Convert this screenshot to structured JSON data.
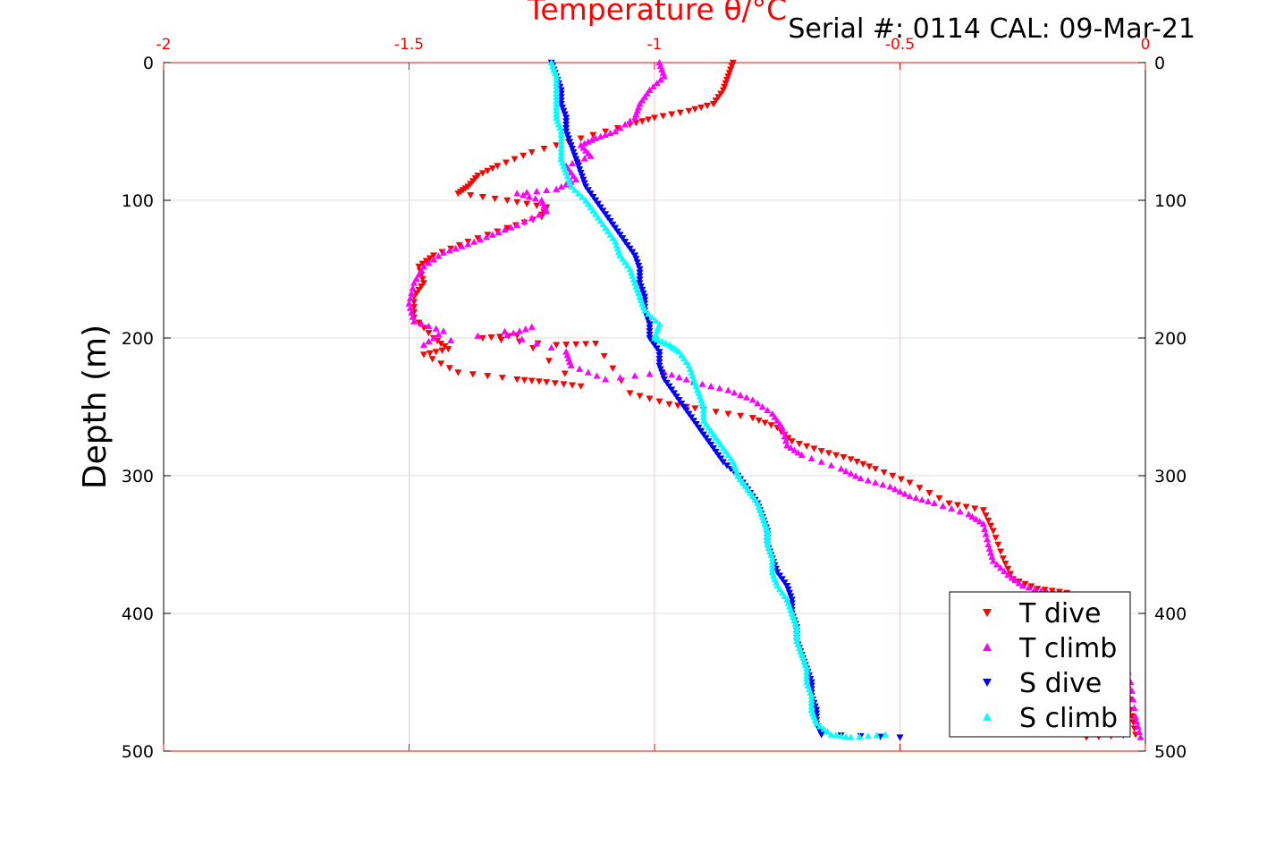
{
  "chart_data": {
    "type": "scatter",
    "title": "Temperature θ/°C",
    "annotation": "Serial #: 0114  CAL: 09-Mar-21",
    "xlabel": "Temperature θ/°C",
    "ylabel": "Depth (m)",
    "xlim": [
      -2,
      0
    ],
    "ylim": [
      500,
      0
    ],
    "y_reversed": true,
    "x_ticks": [
      "-2",
      "-1.5",
      "-1",
      "-0.5",
      "0"
    ],
    "y_ticks": [
      "0",
      "100",
      "200",
      "300",
      "400",
      "500"
    ],
    "grid": true,
    "legend_position": "bottom-right",
    "series": [
      {
        "name": "T dive",
        "color": "#ff0000",
        "marker": "triangle-down",
        "points": [
          [
            -0.84,
            0
          ],
          [
            -0.85,
            10
          ],
          [
            -0.86,
            20
          ],
          [
            -0.88,
            30
          ],
          [
            -0.93,
            35
          ],
          [
            -1.0,
            40
          ],
          [
            -1.05,
            45
          ],
          [
            -1.15,
            55
          ],
          [
            -1.25,
            65
          ],
          [
            -1.32,
            75
          ],
          [
            -1.36,
            82
          ],
          [
            -1.38,
            90
          ],
          [
            -1.4,
            95
          ],
          [
            -1.3,
            100
          ],
          [
            -1.22,
            105
          ],
          [
            -1.23,
            112
          ],
          [
            -1.3,
            120
          ],
          [
            -1.38,
            130
          ],
          [
            -1.45,
            140
          ],
          [
            -1.48,
            148
          ],
          [
            -1.47,
            160
          ],
          [
            -1.49,
            170
          ],
          [
            -1.49,
            185
          ],
          [
            -1.45,
            200
          ],
          [
            -1.42,
            208
          ],
          [
            -1.47,
            212
          ],
          [
            -1.4,
            225
          ],
          [
            -1.28,
            230
          ],
          [
            -1.22,
            232
          ],
          [
            -1.15,
            235
          ],
          [
            -1.28,
            198
          ],
          [
            -1.35,
            200
          ],
          [
            -1.2,
            205
          ],
          [
            -1.12,
            204
          ],
          [
            -1.05,
            240
          ],
          [
            -0.97,
            248
          ],
          [
            -0.9,
            252
          ],
          [
            -0.8,
            258
          ],
          [
            -0.75,
            265
          ],
          [
            -0.72,
            275
          ],
          [
            -0.66,
            282
          ],
          [
            -0.6,
            288
          ],
          [
            -0.55,
            295
          ],
          [
            -0.48,
            305
          ],
          [
            -0.4,
            320
          ],
          [
            -0.33,
            325
          ],
          [
            -0.31,
            340
          ],
          [
            -0.29,
            360
          ],
          [
            -0.27,
            375
          ],
          [
            -0.22,
            382
          ],
          [
            -0.16,
            385
          ],
          [
            -0.1,
            395
          ],
          [
            -0.06,
            410
          ],
          [
            -0.04,
            440
          ],
          [
            -0.03,
            470
          ],
          [
            -0.02,
            488
          ],
          [
            -0.12,
            490
          ]
        ]
      },
      {
        "name": "T climb",
        "color": "#ff00ff",
        "marker": "triangle-up",
        "points": [
          [
            -0.99,
            0
          ],
          [
            -0.98,
            10
          ],
          [
            -1.01,
            20
          ],
          [
            -1.03,
            30
          ],
          [
            -1.04,
            40
          ],
          [
            -1.08,
            50
          ],
          [
            -1.12,
            55
          ],
          [
            -1.15,
            60
          ],
          [
            -1.13,
            68
          ],
          [
            -1.18,
            75
          ],
          [
            -1.16,
            85
          ],
          [
            -1.2,
            92
          ],
          [
            -1.28,
            95
          ],
          [
            -1.23,
            100
          ],
          [
            -1.22,
            108
          ],
          [
            -1.28,
            118
          ],
          [
            -1.33,
            125
          ],
          [
            -1.38,
            132
          ],
          [
            -1.43,
            138
          ],
          [
            -1.47,
            148
          ],
          [
            -1.49,
            160
          ],
          [
            -1.5,
            175
          ],
          [
            -1.49,
            188
          ],
          [
            -1.43,
            195
          ],
          [
            -1.47,
            205
          ],
          [
            -1.25,
            192
          ],
          [
            -1.3,
            198
          ],
          [
            -1.18,
            210
          ],
          [
            -1.17,
            220
          ],
          [
            -1.1,
            230
          ],
          [
            -0.98,
            225
          ],
          [
            -0.92,
            232
          ],
          [
            -0.85,
            238
          ],
          [
            -0.8,
            245
          ],
          [
            -0.76,
            255
          ],
          [
            -0.74,
            265
          ],
          [
            -0.73,
            278
          ],
          [
            -0.7,
            285
          ],
          [
            -0.62,
            295
          ],
          [
            -0.58,
            302
          ],
          [
            -0.52,
            308
          ],
          [
            -0.48,
            315
          ],
          [
            -0.43,
            320
          ],
          [
            -0.36,
            328
          ],
          [
            -0.33,
            335
          ],
          [
            -0.32,
            350
          ],
          [
            -0.31,
            362
          ],
          [
            -0.28,
            372
          ],
          [
            -0.25,
            380
          ],
          [
            -0.2,
            385
          ],
          [
            -0.14,
            388
          ],
          [
            -0.08,
            400
          ],
          [
            -0.05,
            420
          ],
          [
            -0.03,
            450
          ],
          [
            -0.02,
            475
          ],
          [
            -0.01,
            490
          ]
        ]
      },
      {
        "name": "S dive",
        "color": "#0000ff",
        "marker": "triangle-down",
        "points": [
          [
            -1.21,
            0
          ],
          [
            -1.2,
            10
          ],
          [
            -1.19,
            20
          ],
          [
            -1.19,
            30
          ],
          [
            -1.18,
            40
          ],
          [
            -1.18,
            50
          ],
          [
            -1.17,
            60
          ],
          [
            -1.16,
            70
          ],
          [
            -1.15,
            80
          ],
          [
            -1.14,
            90
          ],
          [
            -1.12,
            100
          ],
          [
            -1.1,
            110
          ],
          [
            -1.08,
            120
          ],
          [
            -1.06,
            130
          ],
          [
            -1.04,
            140
          ],
          [
            -1.03,
            150
          ],
          [
            -1.03,
            160
          ],
          [
            -1.02,
            170
          ],
          [
            -1.02,
            180
          ],
          [
            -1.01,
            190
          ],
          [
            -1.01,
            200
          ],
          [
            -0.99,
            210
          ],
          [
            -0.99,
            220
          ],
          [
            -0.98,
            230
          ],
          [
            -0.96,
            240
          ],
          [
            -0.94,
            250
          ],
          [
            -0.92,
            260
          ],
          [
            -0.9,
            270
          ],
          [
            -0.88,
            280
          ],
          [
            -0.86,
            290
          ],
          [
            -0.83,
            300
          ],
          [
            -0.81,
            310
          ],
          [
            -0.79,
            320
          ],
          [
            -0.78,
            330
          ],
          [
            -0.77,
            340
          ],
          [
            -0.77,
            350
          ],
          [
            -0.76,
            360
          ],
          [
            -0.75,
            370
          ],
          [
            -0.73,
            380
          ],
          [
            -0.72,
            390
          ],
          [
            -0.72,
            400
          ],
          [
            -0.71,
            410
          ],
          [
            -0.71,
            420
          ],
          [
            -0.7,
            430
          ],
          [
            -0.69,
            440
          ],
          [
            -0.68,
            450
          ],
          [
            -0.68,
            460
          ],
          [
            -0.67,
            470
          ],
          [
            -0.67,
            480
          ],
          [
            -0.66,
            488
          ],
          [
            -0.5,
            490
          ]
        ]
      },
      {
        "name": "S climb",
        "color": "#00ffff",
        "marker": "triangle-up",
        "points": [
          [
            -1.21,
            0
          ],
          [
            -1.2,
            10
          ],
          [
            -1.2,
            20
          ],
          [
            -1.2,
            30
          ],
          [
            -1.2,
            40
          ],
          [
            -1.19,
            50
          ],
          [
            -1.19,
            60
          ],
          [
            -1.19,
            70
          ],
          [
            -1.18,
            80
          ],
          [
            -1.17,
            90
          ],
          [
            -1.14,
            100
          ],
          [
            -1.12,
            110
          ],
          [
            -1.1,
            120
          ],
          [
            -1.08,
            130
          ],
          [
            -1.07,
            140
          ],
          [
            -1.05,
            150
          ],
          [
            -1.04,
            160
          ],
          [
            -1.03,
            170
          ],
          [
            -1.02,
            180
          ],
          [
            -0.99,
            190
          ],
          [
            -1.0,
            200
          ],
          [
            -0.97,
            205
          ],
          [
            -0.95,
            210
          ],
          [
            -0.93,
            220
          ],
          [
            -0.92,
            230
          ],
          [
            -0.91,
            240
          ],
          [
            -0.9,
            250
          ],
          [
            -0.9,
            260
          ],
          [
            -0.88,
            270
          ],
          [
            -0.86,
            280
          ],
          [
            -0.84,
            290
          ],
          [
            -0.83,
            300
          ],
          [
            -0.81,
            310
          ],
          [
            -0.79,
            320
          ],
          [
            -0.78,
            330
          ],
          [
            -0.77,
            340
          ],
          [
            -0.77,
            350
          ],
          [
            -0.76,
            360
          ],
          [
            -0.76,
            370
          ],
          [
            -0.75,
            380
          ],
          [
            -0.73,
            390
          ],
          [
            -0.72,
            400
          ],
          [
            -0.71,
            410
          ],
          [
            -0.71,
            420
          ],
          [
            -0.7,
            430
          ],
          [
            -0.69,
            440
          ],
          [
            -0.69,
            450
          ],
          [
            -0.68,
            460
          ],
          [
            -0.68,
            470
          ],
          [
            -0.67,
            480
          ],
          [
            -0.64,
            488
          ],
          [
            -0.6,
            490
          ],
          [
            -0.53,
            488
          ]
        ]
      }
    ]
  }
}
